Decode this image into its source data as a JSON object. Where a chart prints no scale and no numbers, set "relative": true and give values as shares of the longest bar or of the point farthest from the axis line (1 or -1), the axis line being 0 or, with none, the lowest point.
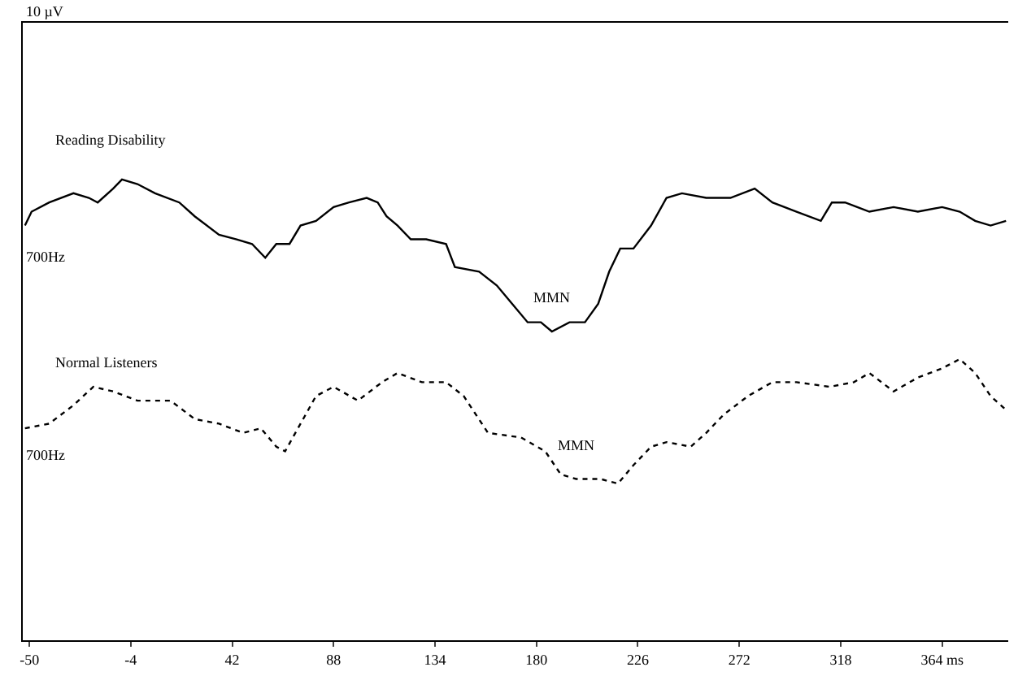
{
  "chart_data": {
    "type": "line",
    "relative": true,
    "xlim": [
      -53,
      394
    ],
    "xticks": [
      -50,
      -4,
      42,
      88,
      134,
      180,
      226,
      272,
      318,
      {
        "value": 364,
        "label": "364 ms"
      }
    ],
    "legend": false,
    "marker": "none",
    "annotations": [
      "10 µV",
      "700Hz",
      "700Hz",
      {
        "text": "MMN",
        "x": 187,
        "y": 0.67
      },
      {
        "text": "MMN",
        "x": 198,
        "y": 0.35
      }
    ],
    "series": [
      {
        "name": "Reading Disability",
        "color": "#000000",
        "line_style": "solid",
        "x": [
          -52,
          -49,
          -41,
          -30,
          -23,
          -19,
          -12,
          -8,
          -1,
          7,
          18,
          25,
          36,
          44,
          51,
          57,
          62,
          68,
          73,
          80,
          88,
          95,
          103,
          108,
          112,
          117,
          123,
          130,
          139,
          143,
          154,
          162,
          169,
          176,
          182,
          187,
          195,
          202,
          208,
          213,
          218,
          224,
          232,
          239,
          246,
          257,
          268,
          279,
          287,
          298,
          309,
          314,
          320,
          331,
          342,
          353,
          364,
          372,
          379,
          386,
          393
        ],
        "values": [
          0.9,
          0.93,
          0.95,
          0.97,
          0.96,
          0.95,
          0.98,
          1.0,
          0.99,
          0.97,
          0.95,
          0.92,
          0.88,
          0.87,
          0.86,
          0.83,
          0.86,
          0.86,
          0.9,
          0.91,
          0.94,
          0.95,
          0.96,
          0.95,
          0.92,
          0.9,
          0.87,
          0.87,
          0.86,
          0.81,
          0.8,
          0.77,
          0.73,
          0.69,
          0.69,
          0.67,
          0.69,
          0.69,
          0.73,
          0.8,
          0.85,
          0.85,
          0.9,
          0.96,
          0.97,
          0.96,
          0.96,
          0.98,
          0.95,
          0.93,
          0.91,
          0.95,
          0.95,
          0.93,
          0.94,
          0.93,
          0.94,
          0.93,
          0.91,
          0.9,
          0.91
        ]
      },
      {
        "name": "Normal Listeners",
        "color": "#000000",
        "line_style": "dotted",
        "x": [
          -52,
          -41,
          -30,
          -21,
          -12,
          -1,
          14,
          25,
          36,
          47,
          55,
          62,
          66,
          73,
          80,
          88,
          99,
          110,
          117,
          128,
          139,
          147,
          158,
          173,
          184,
          191,
          198,
          209,
          217,
          224,
          232,
          239,
          250,
          257,
          265,
          276,
          287,
          298,
          313,
          324,
          331,
          342,
          353,
          364,
          372,
          379,
          386,
          393
        ],
        "values": [
          0.46,
          0.47,
          0.51,
          0.55,
          0.54,
          0.52,
          0.52,
          0.48,
          0.47,
          0.45,
          0.46,
          0.42,
          0.41,
          0.47,
          0.53,
          0.55,
          0.52,
          0.56,
          0.58,
          0.56,
          0.56,
          0.53,
          0.45,
          0.44,
          0.41,
          0.36,
          0.35,
          0.35,
          0.34,
          0.38,
          0.42,
          0.43,
          0.42,
          0.45,
          0.49,
          0.53,
          0.56,
          0.56,
          0.55,
          0.56,
          0.58,
          0.54,
          0.57,
          0.59,
          0.61,
          0.58,
          0.53,
          0.5
        ]
      }
    ]
  }
}
